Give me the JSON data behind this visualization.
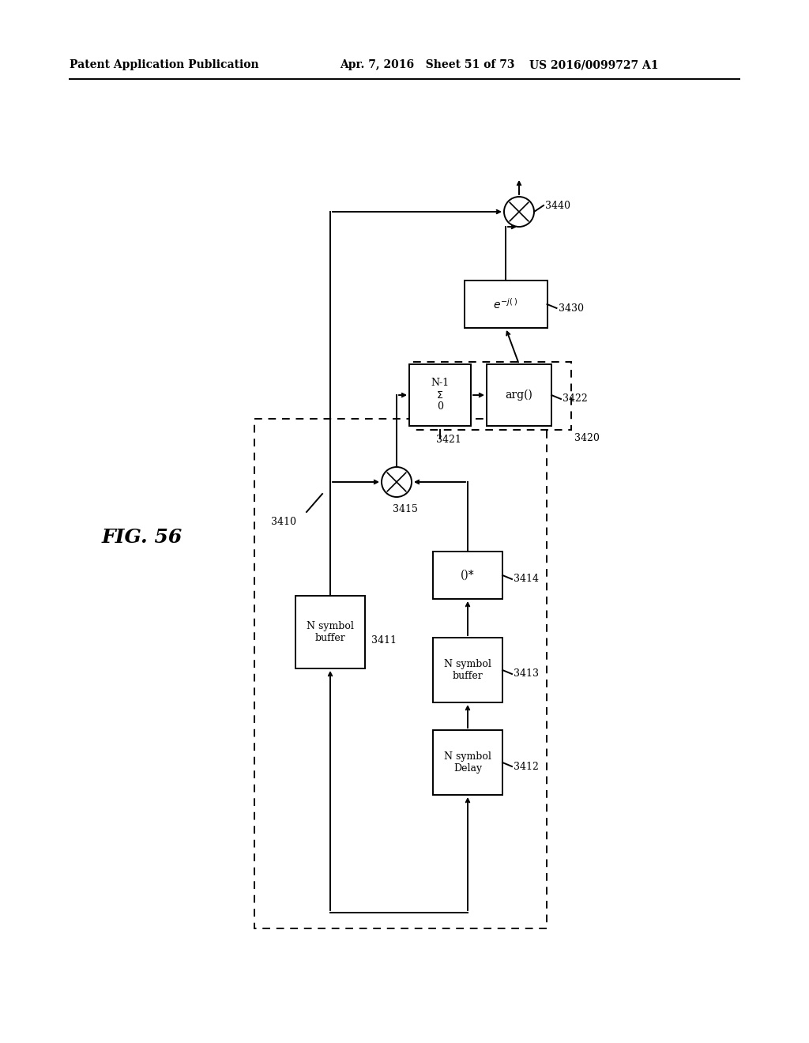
{
  "title_left": "Patent Application Publication",
  "title_mid": "Apr. 7, 2016   Sheet 51 of 73",
  "title_right": "US 2016/0099727 A1",
  "fig_label": "FIG. 56",
  "background": "#ffffff"
}
